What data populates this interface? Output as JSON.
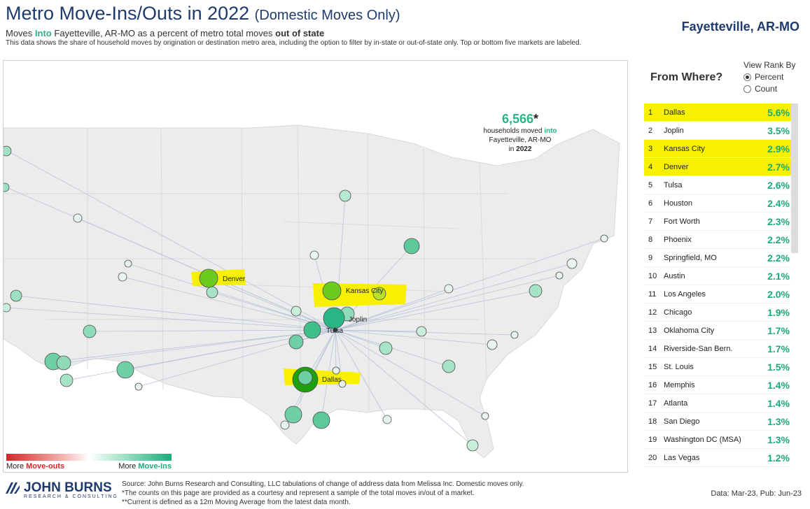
{
  "header": {
    "title": "Metro Move-Ins/Outs in 2022",
    "title_suffix": "(Domestic Moves Only)",
    "subtitle_pre": "Moves",
    "subtitle_into": "Into",
    "subtitle_mid": "Fayetteville, AR-MO as a percent of metro total moves",
    "subtitle_bold": "out of state",
    "description": "This data shows the share of household moves by origination or destination metro area, including the option to filter by in-state or out-of-state only. Top or bottom five markets are labeled.",
    "metro": "Fayetteville, AR-MO"
  },
  "map": {
    "callout_number": "6,566",
    "callout_star": "*",
    "callout_line1_pre": "households moved",
    "callout_line1_into": "into",
    "callout_line2": "Fayetteville, AR-MO",
    "callout_line3_pre": "in",
    "callout_line3_year": "2022",
    "labels": {
      "denver": "Denver",
      "kansas_city": "Kansas City",
      "joplin": "Joplin",
      "tulsa": "Tulsa",
      "dallas": "Dallas"
    },
    "legend_out_pre": "More",
    "legend_out": "Move-outs",
    "legend_in_pre": "More",
    "legend_in": "Move-Ins",
    "colors": {
      "highlight": "#f7f000",
      "move_in": "#1aab78",
      "move_out": "#d62728",
      "bubble": "#7fd3b0",
      "top": "#3cb820"
    }
  },
  "panel": {
    "from_where": "From Where?",
    "view_rank_by": "View Rank By",
    "options": [
      "Percent",
      "Count"
    ],
    "selected": "Percent",
    "rows": [
      {
        "rank": "1",
        "name": "Dallas",
        "pct": "5.6%",
        "highlight": true
      },
      {
        "rank": "2",
        "name": "Joplin",
        "pct": "3.5%",
        "highlight": false
      },
      {
        "rank": "3",
        "name": "Kansas City",
        "pct": "2.9%",
        "highlight": true
      },
      {
        "rank": "4",
        "name": "Denver",
        "pct": "2.7%",
        "highlight": true
      },
      {
        "rank": "5",
        "name": "Tulsa",
        "pct": "2.6%",
        "highlight": false
      },
      {
        "rank": "6",
        "name": "Houston",
        "pct": "2.4%",
        "highlight": false
      },
      {
        "rank": "7",
        "name": "Fort Worth",
        "pct": "2.3%",
        "highlight": false
      },
      {
        "rank": "8",
        "name": "Phoenix",
        "pct": "2.2%",
        "highlight": false
      },
      {
        "rank": "9",
        "name": "Springfield, MO",
        "pct": "2.2%",
        "highlight": false
      },
      {
        "rank": "10",
        "name": "Austin",
        "pct": "2.1%",
        "highlight": false
      },
      {
        "rank": "11",
        "name": "Los Angeles",
        "pct": "2.0%",
        "highlight": false
      },
      {
        "rank": "12",
        "name": "Chicago",
        "pct": "1.9%",
        "highlight": false
      },
      {
        "rank": "13",
        "name": "Oklahoma City",
        "pct": "1.7%",
        "highlight": false
      },
      {
        "rank": "14",
        "name": "Riverside-San Bern.",
        "pct": "1.7%",
        "highlight": false
      },
      {
        "rank": "15",
        "name": "St. Louis",
        "pct": "1.5%",
        "highlight": false
      },
      {
        "rank": "16",
        "name": "Memphis",
        "pct": "1.4%",
        "highlight": false
      },
      {
        "rank": "17",
        "name": "Atlanta",
        "pct": "1.4%",
        "highlight": false
      },
      {
        "rank": "18",
        "name": "San Diego",
        "pct": "1.3%",
        "highlight": false
      },
      {
        "rank": "19",
        "name": "Washington DC (MSA)",
        "pct": "1.3%",
        "highlight": false
      },
      {
        "rank": "20",
        "name": "Las Vegas",
        "pct": "1.2%",
        "highlight": false
      }
    ]
  },
  "footer": {
    "logo_line1": "JOHN BURNS",
    "logo_line2": "RESEARCH & CONSULTING",
    "source1": "Source: John Burns Research and Consulting, LLC tabulations of change of address data from Melissa Inc. Domestic moves only.",
    "source2": "*The counts on this page are provided as a courtesy and represent a sample of the total moves in/out of a market.",
    "source3": "**Current is defined as a 12m Moving Average from the latest data month.",
    "pub": "Data: Mar-23, Pub: Jun-23"
  }
}
